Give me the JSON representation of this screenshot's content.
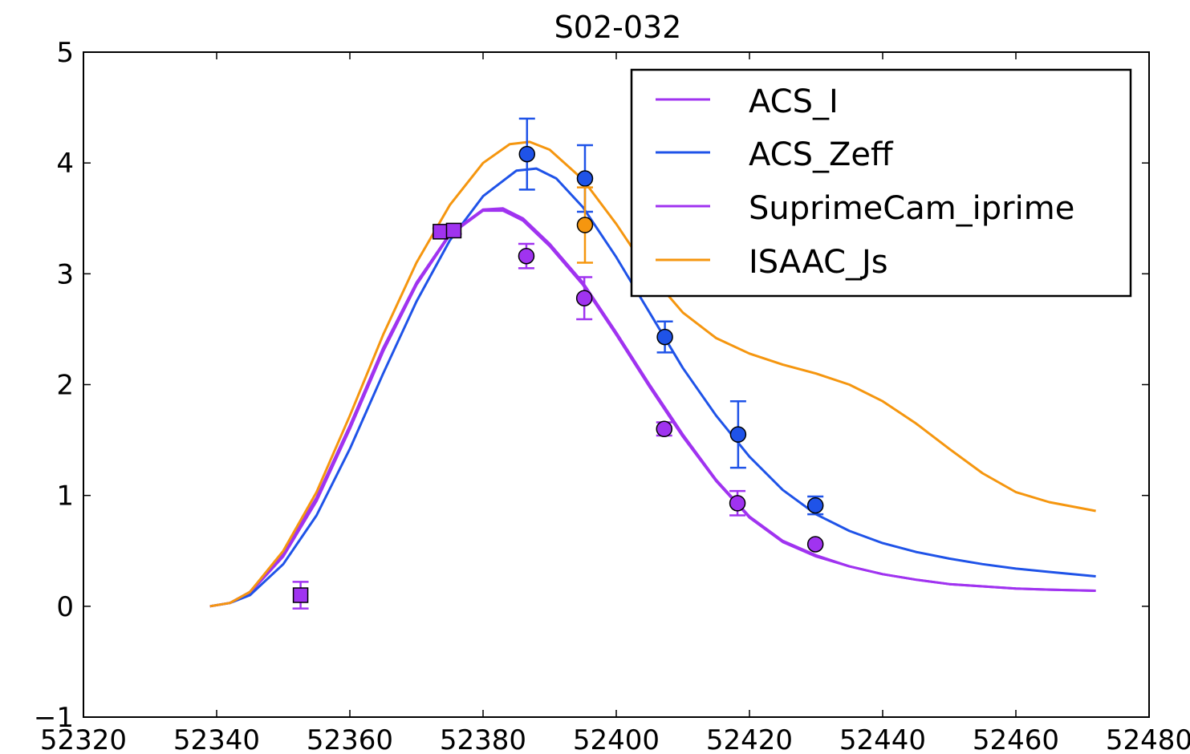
{
  "chart_data": {
    "type": "line",
    "title": "S02-032",
    "xlabel": "",
    "ylabel": "",
    "xlim": [
      52320,
      52480
    ],
    "ylim": [
      -1,
      5
    ],
    "x_ticks": [
      52320,
      52340,
      52360,
      52380,
      52400,
      52420,
      52440,
      52460,
      52480
    ],
    "y_ticks": [
      -1,
      0,
      1,
      2,
      3,
      4,
      5
    ],
    "x_tick_labels": [
      "52320",
      "52340",
      "52360",
      "52380",
      "52400",
      "52420",
      "52440",
      "52460",
      "52480"
    ],
    "y_tick_labels": [
      "−1",
      "0",
      "1",
      "2",
      "3",
      "4",
      "5"
    ],
    "grid": false,
    "legend_position": "top-right",
    "series": [
      {
        "name": "ACS_I",
        "color": "#a033f0",
        "marker": "circle",
        "curve": [
          [
            52339,
            0
          ],
          [
            52342,
            0.03
          ],
          [
            52345,
            0.12
          ],
          [
            52350,
            0.45
          ],
          [
            52355,
            0.95
          ],
          [
            52360,
            1.6
          ],
          [
            52365,
            2.3
          ],
          [
            52370,
            2.9
          ],
          [
            52375,
            3.35
          ],
          [
            52380,
            3.57
          ],
          [
            52383,
            3.57
          ],
          [
            52386,
            3.48
          ],
          [
            52390,
            3.25
          ],
          [
            52395,
            2.9
          ],
          [
            52400,
            2.45
          ],
          [
            52405,
            1.98
          ],
          [
            52410,
            1.53
          ],
          [
            52415,
            1.13
          ],
          [
            52420,
            0.8
          ],
          [
            52425,
            0.58
          ],
          [
            52430,
            0.45
          ],
          [
            52435,
            0.36
          ],
          [
            52440,
            0.29
          ],
          [
            52445,
            0.24
          ],
          [
            52450,
            0.2
          ],
          [
            52455,
            0.18
          ],
          [
            52460,
            0.16
          ],
          [
            52465,
            0.15
          ],
          [
            52472,
            0.14
          ]
        ],
        "points": [
          {
            "x": 52386.5,
            "y": 3.16,
            "err": 0.11
          },
          {
            "x": 52395.2,
            "y": 2.78,
            "err": 0.19
          },
          {
            "x": 52407.2,
            "y": 1.6,
            "err": 0.06
          },
          {
            "x": 52418.2,
            "y": 0.93,
            "err": 0.11
          },
          {
            "x": 52429.9,
            "y": 0.56,
            "err": 0.0
          }
        ]
      },
      {
        "name": "ACS_Zeff",
        "color": "#1f53e8",
        "marker": "circle",
        "curve": [
          [
            52339,
            0
          ],
          [
            52342,
            0.03
          ],
          [
            52345,
            0.1
          ],
          [
            52350,
            0.38
          ],
          [
            52355,
            0.82
          ],
          [
            52360,
            1.42
          ],
          [
            52365,
            2.1
          ],
          [
            52370,
            2.75
          ],
          [
            52375,
            3.3
          ],
          [
            52380,
            3.7
          ],
          [
            52385,
            3.93
          ],
          [
            52388,
            3.95
          ],
          [
            52391,
            3.86
          ],
          [
            52395,
            3.6
          ],
          [
            52400,
            3.15
          ],
          [
            52405,
            2.65
          ],
          [
            52410,
            2.15
          ],
          [
            52415,
            1.72
          ],
          [
            52420,
            1.35
          ],
          [
            52425,
            1.05
          ],
          [
            52430,
            0.83
          ],
          [
            52435,
            0.68
          ],
          [
            52440,
            0.57
          ],
          [
            52445,
            0.49
          ],
          [
            52450,
            0.43
          ],
          [
            52455,
            0.38
          ],
          [
            52460,
            0.34
          ],
          [
            52465,
            0.31
          ],
          [
            52472,
            0.27
          ]
        ],
        "points": [
          {
            "x": 52386.6,
            "y": 4.08,
            "err": 0.32
          },
          {
            "x": 52395.3,
            "y": 3.86,
            "err": 0.3
          },
          {
            "x": 52407.3,
            "y": 2.43,
            "err": 0.14
          },
          {
            "x": 52418.3,
            "y": 1.55,
            "err": 0.3
          },
          {
            "x": 52429.9,
            "y": 0.91,
            "err": 0.08
          }
        ]
      },
      {
        "name": "SuprimeCam_iprime",
        "color": "#a033f0",
        "marker": "square",
        "curve": [
          [
            52339,
            0
          ],
          [
            52342,
            0.03
          ],
          [
            52345,
            0.13
          ],
          [
            52350,
            0.48
          ],
          [
            52355,
            0.98
          ],
          [
            52360,
            1.63
          ],
          [
            52365,
            2.33
          ],
          [
            52370,
            2.92
          ],
          [
            52375,
            3.36
          ],
          [
            52380,
            3.58
          ],
          [
            52383,
            3.59
          ],
          [
            52386,
            3.5
          ],
          [
            52390,
            3.27
          ],
          [
            52395,
            2.92
          ],
          [
            52400,
            2.47
          ],
          [
            52405,
            2.0
          ],
          [
            52410,
            1.55
          ],
          [
            52415,
            1.14
          ],
          [
            52420,
            0.81
          ],
          [
            52425,
            0.59
          ],
          [
            52430,
            0.46
          ],
          [
            52435,
            0.36
          ],
          [
            52440,
            0.29
          ],
          [
            52445,
            0.24
          ],
          [
            52450,
            0.2
          ],
          [
            52455,
            0.18
          ],
          [
            52460,
            0.16
          ],
          [
            52465,
            0.15
          ],
          [
            52472,
            0.14
          ]
        ],
        "points": [
          {
            "x": 52352.6,
            "y": 0.1,
            "err": 0.12
          },
          {
            "x": 52373.6,
            "y": 3.38,
            "err": 0.03
          },
          {
            "x": 52375.6,
            "y": 3.39,
            "err": 0.03
          }
        ]
      },
      {
        "name": "ISAAC_Js",
        "color": "#f5960f",
        "marker": "circle",
        "curve": [
          [
            52339,
            0
          ],
          [
            52342,
            0.03
          ],
          [
            52345,
            0.13
          ],
          [
            52350,
            0.5
          ],
          [
            52355,
            1.03
          ],
          [
            52360,
            1.72
          ],
          [
            52365,
            2.45
          ],
          [
            52370,
            3.1
          ],
          [
            52375,
            3.62
          ],
          [
            52380,
            4.0
          ],
          [
            52384,
            4.17
          ],
          [
            52387,
            4.19
          ],
          [
            52390,
            4.12
          ],
          [
            52395,
            3.85
          ],
          [
            52400,
            3.45
          ],
          [
            52405,
            3.0
          ],
          [
            52410,
            2.65
          ],
          [
            52415,
            2.42
          ],
          [
            52420,
            2.28
          ],
          [
            52425,
            2.18
          ],
          [
            52430,
            2.1
          ],
          [
            52435,
            2.0
          ],
          [
            52440,
            1.85
          ],
          [
            52445,
            1.65
          ],
          [
            52450,
            1.42
          ],
          [
            52455,
            1.2
          ],
          [
            52460,
            1.03
          ],
          [
            52465,
            0.94
          ],
          [
            52472,
            0.86
          ]
        ],
        "points": [
          {
            "x": 52395.3,
            "y": 3.44,
            "err": 0.34
          }
        ]
      }
    ]
  }
}
